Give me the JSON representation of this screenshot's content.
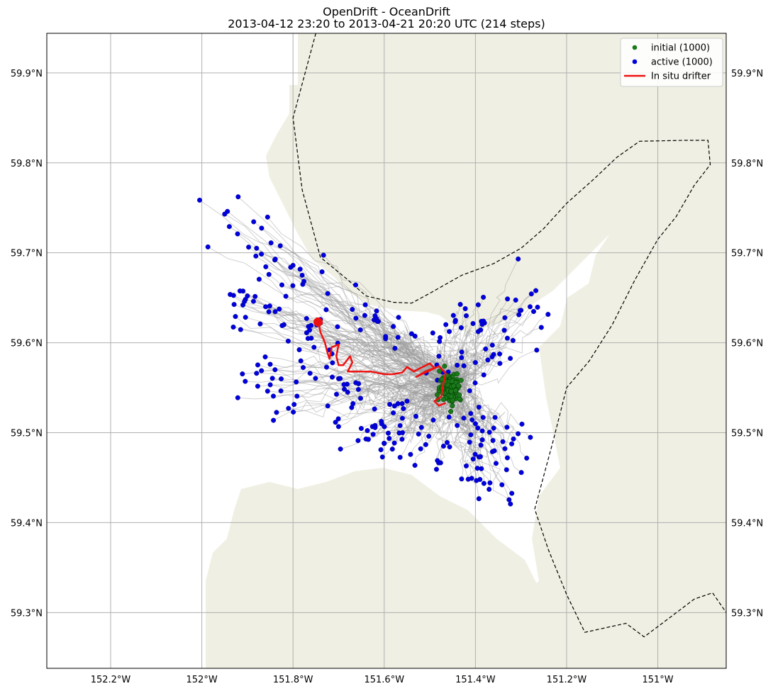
{
  "figure": {
    "title_line1": "OpenDrift - OceanDrift",
    "title_line2": "2013-04-12 23:20 to 2013-04-21 20:20 UTC (214 steps)"
  },
  "colors": {
    "land": "#efefe3",
    "grid": "#b0b0b0",
    "trajectory": "#9a9a9a",
    "initial": "#1a7a1a",
    "active": "#0000dd",
    "drifter": "#ee1111"
  },
  "chart_data": {
    "type": "scatter",
    "map_projection": "lon-lat",
    "grid": true,
    "legend_placement": "top-right",
    "xlim": [
      -152.34,
      -150.85
    ],
    "ylim": [
      59.238,
      59.944
    ],
    "x_ticks": [
      -152.2,
      -152.0,
      -151.8,
      -151.6,
      -151.4,
      -151.2,
      -151.0
    ],
    "x_tick_labels": [
      "152.2°W",
      "152°W",
      "151.8°W",
      "151.6°W",
      "151.4°W",
      "151.2°W",
      "151°W"
    ],
    "y_ticks": [
      59.3,
      59.4,
      59.5,
      59.6,
      59.7,
      59.8,
      59.9
    ],
    "y_tick_labels": [
      "59.3°N",
      "59.4°N",
      "59.5°N",
      "59.6°N",
      "59.7°N",
      "59.8°N",
      "59.9°N"
    ],
    "legend": [
      {
        "label": "initial (1000)",
        "marker": "dot",
        "color": "#1a7a1a"
      },
      {
        "label": "active (1000)",
        "marker": "dot",
        "color": "#0000dd"
      },
      {
        "label": "In situ drifter",
        "marker": "line",
        "color": "#ee1111"
      }
    ],
    "boundary_dashed": [
      [
        [
          -151.75,
          59.944
        ],
        [
          -151.8,
          59.85
        ],
        [
          -151.78,
          59.77
        ],
        [
          -151.74,
          59.695
        ],
        [
          -151.68,
          59.67
        ],
        [
          -151.64,
          59.652
        ],
        [
          -151.58,
          59.645
        ],
        [
          -151.54,
          59.644
        ],
        [
          -151.5,
          59.655
        ],
        [
          -151.43,
          59.675
        ],
        [
          -151.36,
          59.688
        ],
        [
          -151.3,
          59.705
        ],
        [
          -151.25,
          59.727
        ],
        [
          -151.2,
          59.755
        ],
        [
          -151.14,
          59.782
        ],
        [
          -151.09,
          59.806
        ],
        [
          -151.04,
          59.824
        ],
        [
          -150.94,
          59.825
        ],
        [
          -150.89,
          59.825
        ],
        [
          -150.885,
          59.798
        ],
        [
          -150.92,
          59.775
        ],
        [
          -150.96,
          59.74
        ],
        [
          -151.0,
          59.715
        ],
        [
          -151.05,
          59.67
        ],
        [
          -151.1,
          59.62
        ],
        [
          -151.15,
          59.58
        ],
        [
          -151.2,
          59.55
        ],
        [
          -151.23,
          59.49
        ],
        [
          -151.27,
          59.415
        ],
        [
          -151.24,
          59.37
        ],
        [
          -151.2,
          59.32
        ],
        [
          -151.16,
          59.278
        ],
        [
          -151.07,
          59.288
        ],
        [
          -151.03,
          59.273
        ],
        [
          -150.98,
          59.292
        ],
        [
          -150.92,
          59.315
        ],
        [
          -150.88,
          59.322
        ],
        [
          -150.85,
          59.3
        ]
      ]
    ],
    "initial": {
      "center": [
        -151.455,
        59.551
      ],
      "spread": [
        0.025,
        0.018
      ],
      "count": 1000
    },
    "active_points_sample": [
      [
        -151.95,
        59.743
      ],
      [
        -151.88,
        59.705
      ],
      [
        -151.84,
        59.692
      ],
      [
        -151.8,
        59.686
      ],
      [
        -151.78,
        59.675
      ],
      [
        -151.9,
        59.652
      ],
      [
        -151.86,
        59.64
      ],
      [
        -151.82,
        59.62
      ],
      [
        -151.85,
        59.576
      ],
      [
        -151.88,
        59.566
      ],
      [
        -151.81,
        59.527
      ],
      [
        -151.74,
        59.622
      ],
      [
        -151.67,
        59.637
      ],
      [
        -151.62,
        59.63
      ],
      [
        -151.58,
        59.618
      ],
      [
        -151.54,
        59.61
      ],
      [
        -151.48,
        59.585
      ],
      [
        -151.44,
        59.575
      ],
      [
        -151.4,
        59.578
      ],
      [
        -151.36,
        59.587
      ],
      [
        -151.33,
        59.605
      ],
      [
        -151.3,
        59.636
      ],
      [
        -151.28,
        59.64
      ],
      [
        -151.38,
        59.622
      ],
      [
        -151.42,
        59.63
      ],
      [
        -151.55,
        59.535
      ],
      [
        -151.58,
        59.522
      ],
      [
        -151.62,
        59.508
      ],
      [
        -151.64,
        59.493
      ],
      [
        -151.6,
        59.488
      ],
      [
        -151.56,
        59.5
      ],
      [
        -151.52,
        59.482
      ],
      [
        -151.47,
        59.485
      ],
      [
        -151.44,
        59.508
      ],
      [
        -151.4,
        59.51
      ],
      [
        -151.36,
        59.505
      ],
      [
        -151.34,
        59.49
      ],
      [
        -151.33,
        59.472
      ],
      [
        -151.42,
        59.463
      ],
      [
        -151.39,
        59.448
      ],
      [
        -151.37,
        59.437
      ],
      [
        -151.68,
        59.545
      ],
      [
        -151.7,
        59.56
      ],
      [
        -151.72,
        59.592
      ],
      [
        -151.76,
        59.605
      ],
      [
        -151.91,
        59.642
      ]
    ],
    "drifter_track": [
      [
        -151.745,
        59.623
      ],
      [
        -151.74,
        59.612
      ],
      [
        -151.73,
        59.6
      ],
      [
        -151.725,
        59.59
      ],
      [
        -151.72,
        59.582
      ],
      [
        -151.715,
        59.595
      ],
      [
        -151.7,
        59.598
      ],
      [
        -151.705,
        59.585
      ],
      [
        -151.7,
        59.575
      ],
      [
        -151.69,
        59.575
      ],
      [
        -151.675,
        59.585
      ],
      [
        -151.67,
        59.578
      ],
      [
        -151.68,
        59.568
      ],
      [
        -151.66,
        59.568
      ],
      [
        -151.63,
        59.568
      ],
      [
        -151.6,
        59.565
      ],
      [
        -151.58,
        59.565
      ],
      [
        -151.56,
        59.567
      ],
      [
        -151.55,
        59.573
      ],
      [
        -151.535,
        59.568
      ],
      [
        -151.52,
        59.572
      ],
      [
        -151.5,
        59.577
      ],
      [
        -151.49,
        59.572
      ],
      [
        -151.51,
        59.568
      ],
      [
        -151.53,
        59.562
      ],
      [
        -151.505,
        59.568
      ],
      [
        -151.48,
        59.574
      ],
      [
        -151.465,
        59.566
      ],
      [
        -151.47,
        59.555
      ],
      [
        -151.475,
        59.54
      ],
      [
        -151.49,
        59.535
      ],
      [
        -151.48,
        59.53
      ],
      [
        -151.465,
        59.533
      ]
    ],
    "drifter_start": [
      -151.745,
      59.623
    ]
  }
}
